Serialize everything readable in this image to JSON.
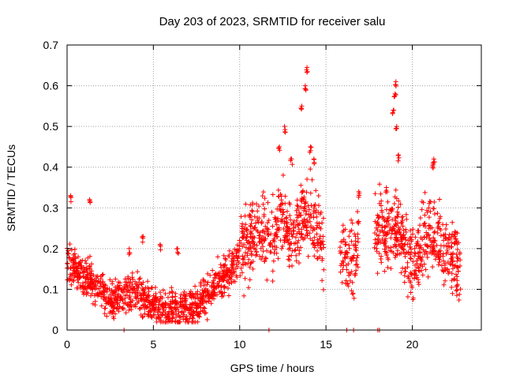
{
  "chart_data": {
    "type": "scatter",
    "title": "Day 203 of 2023, SRMTID for receiver salu",
    "xlabel": "GPS time / hours",
    "ylabel": "SRMTID / TECUs",
    "xlim": [
      0,
      24
    ],
    "ylim": [
      0,
      0.7
    ],
    "xticks": [
      0,
      5,
      10,
      15,
      20
    ],
    "xtick_labels": [
      "0",
      "5",
      "10",
      "15",
      "20"
    ],
    "yticks": [
      0,
      0.1,
      0.2,
      0.3,
      0.4,
      0.5,
      0.6,
      0.7
    ],
    "ytick_labels": [
      "0",
      "0.1",
      "0.2",
      "0.3",
      "0.4",
      "0.5",
      "0.6",
      "0.7"
    ],
    "grid": true,
    "marker": "+",
    "color": "#ff0000",
    "series": [
      {
        "name": "SRMTID",
        "profile": [
          [
            0.0,
            0.17
          ],
          [
            0.3,
            0.16
          ],
          [
            0.6,
            0.14
          ],
          [
            1.0,
            0.12
          ],
          [
            1.5,
            0.12
          ],
          [
            2.0,
            0.1
          ],
          [
            2.5,
            0.07
          ],
          [
            3.0,
            0.08
          ],
          [
            3.5,
            0.09
          ],
          [
            4.0,
            0.09
          ],
          [
            4.5,
            0.08
          ],
          [
            5.0,
            0.06
          ],
          [
            5.5,
            0.05
          ],
          [
            6.0,
            0.05
          ],
          [
            6.5,
            0.05
          ],
          [
            7.0,
            0.055
          ],
          [
            7.5,
            0.06
          ],
          [
            8.0,
            0.08
          ],
          [
            8.5,
            0.11
          ],
          [
            9.0,
            0.13
          ],
          [
            9.5,
            0.15
          ],
          [
            10.0,
            0.19
          ],
          [
            10.5,
            0.22
          ],
          [
            11.0,
            0.24
          ],
          [
            11.5,
            0.22
          ],
          [
            12.0,
            0.24
          ],
          [
            12.5,
            0.28
          ],
          [
            13.0,
            0.22
          ],
          [
            13.5,
            0.27
          ],
          [
            14.0,
            0.3
          ],
          [
            14.5,
            0.24
          ],
          [
            14.9,
            0.2
          ],
          [
            15.8,
            0.2
          ],
          [
            16.5,
            0.15
          ],
          [
            16.9,
            0.25
          ],
          [
            18.0,
            0.25
          ],
          [
            18.5,
            0.22
          ],
          [
            19.0,
            0.26
          ],
          [
            19.5,
            0.22
          ],
          [
            20.0,
            0.16
          ],
          [
            20.5,
            0.2
          ],
          [
            21.0,
            0.24
          ],
          [
            21.5,
            0.22
          ],
          [
            22.0,
            0.2
          ],
          [
            22.5,
            0.18
          ],
          [
            22.8,
            0.14
          ]
        ],
        "gaps": [
          [
            14.9,
            15.8
          ],
          [
            16.9,
            17.8
          ]
        ],
        "spikes": [
          [
            0.2,
            0.33
          ],
          [
            1.3,
            0.32
          ],
          [
            3.6,
            0.2
          ],
          [
            4.4,
            0.23
          ],
          [
            5.4,
            0.21
          ],
          [
            6.4,
            0.2
          ],
          [
            12.3,
            0.45
          ],
          [
            12.6,
            0.5
          ],
          [
            13.0,
            0.42
          ],
          [
            13.6,
            0.55
          ],
          [
            13.8,
            0.6
          ],
          [
            13.9,
            0.645
          ],
          [
            14.1,
            0.45
          ],
          [
            14.3,
            0.42
          ],
          [
            16.9,
            0.34
          ],
          [
            18.5,
            0.35
          ],
          [
            18.9,
            0.54
          ],
          [
            19.0,
            0.58
          ],
          [
            19.05,
            0.61
          ],
          [
            19.1,
            0.5
          ],
          [
            19.2,
            0.43
          ],
          [
            21.2,
            0.41
          ],
          [
            21.25,
            0.42
          ]
        ],
        "zero_points": [
          3.3,
          11.7,
          16.2,
          16.6,
          18.0,
          18.1
        ]
      }
    ]
  }
}
